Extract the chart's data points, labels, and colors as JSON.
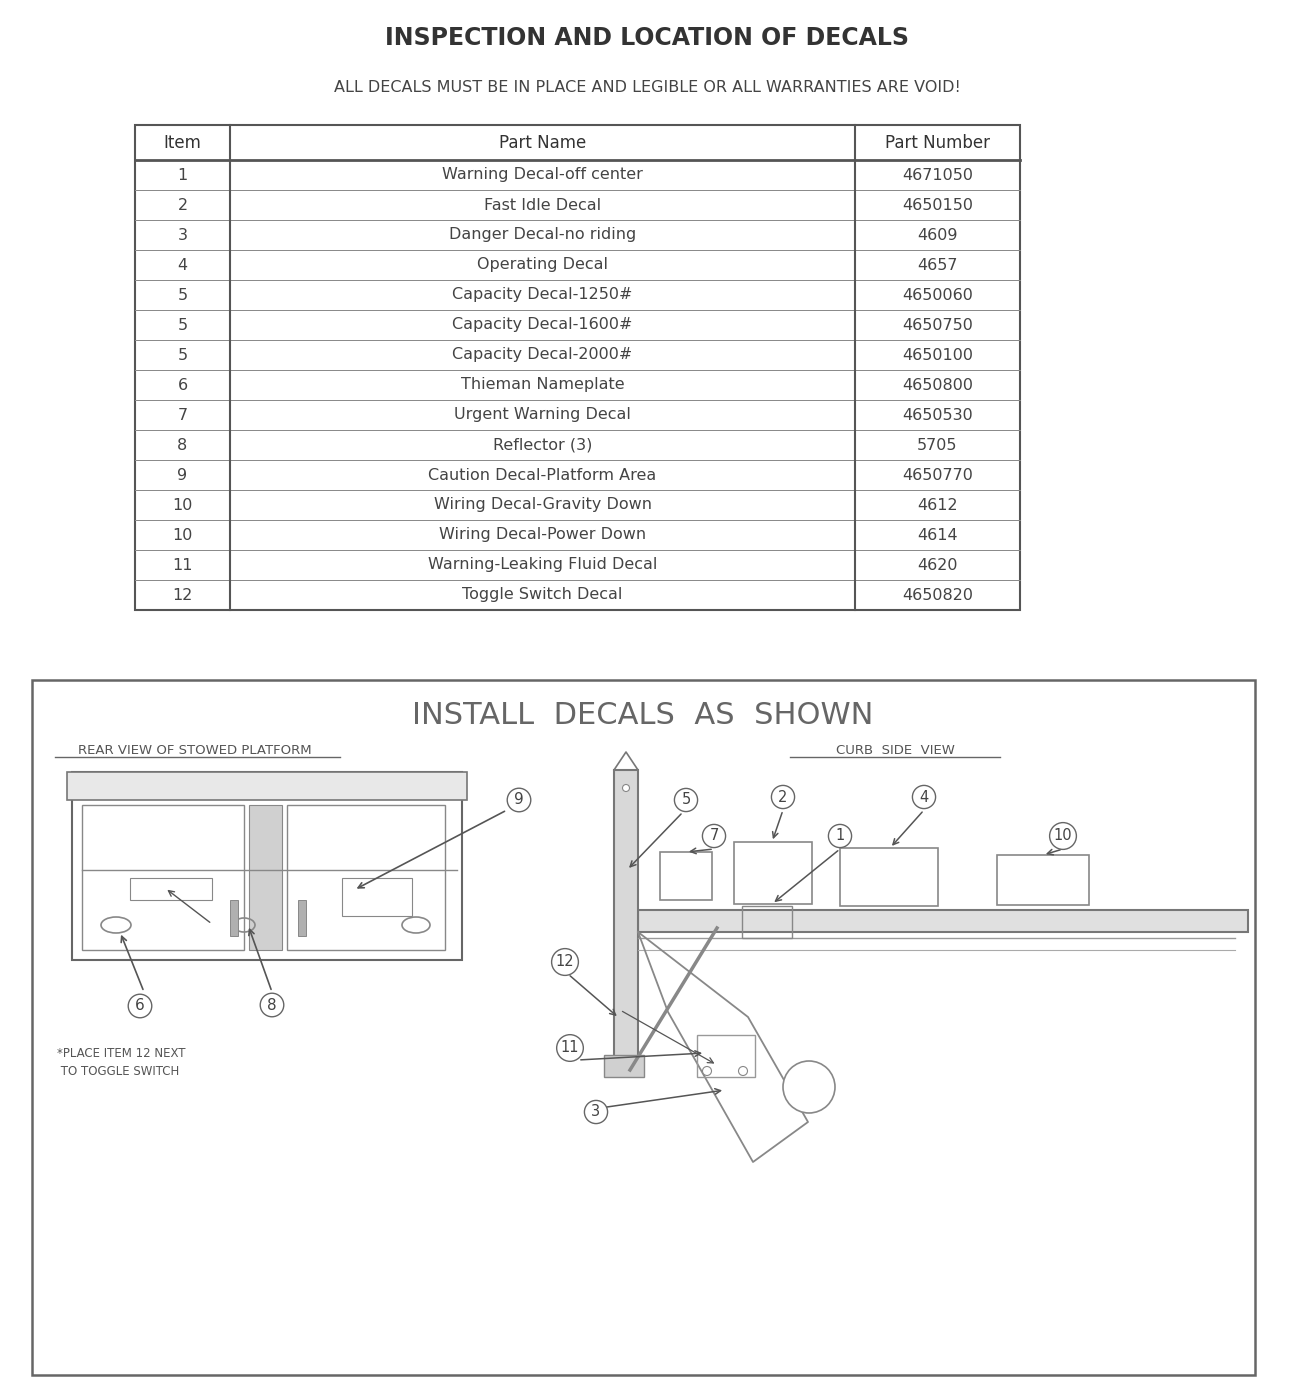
{
  "title": "INSPECTION AND LOCATION OF DECALS",
  "subtitle": "ALL DECALS MUST BE IN PLACE AND LEGIBLE OR ALL WARRANTIES ARE VOID!",
  "table_headers": [
    "Item",
    "Part Name",
    "Part Number"
  ],
  "table_rows": [
    [
      "1",
      "Warning Decal-off center",
      "4671050"
    ],
    [
      "2",
      "Fast Idle Decal",
      "4650150"
    ],
    [
      "3",
      "Danger Decal-no riding",
      "4609"
    ],
    [
      "4",
      "Operating Decal",
      "4657"
    ],
    [
      "5",
      "Capacity Decal-1250#",
      "4650060"
    ],
    [
      "5",
      "Capacity Decal-1600#",
      "4650750"
    ],
    [
      "5",
      "Capacity Decal-2000#",
      "4650100"
    ],
    [
      "6",
      "Thieman Nameplate",
      "4650800"
    ],
    [
      "7",
      "Urgent Warning Decal",
      "4650530"
    ],
    [
      "8",
      "Reflector (3)",
      "5705"
    ],
    [
      "9",
      "Caution Decal-Platform Area",
      "4650770"
    ],
    [
      "10",
      "Wiring Decal-Gravity Down",
      "4612"
    ],
    [
      "10",
      "Wiring Decal-Power Down",
      "4614"
    ],
    [
      "11",
      "Warning-Leaking Fluid Decal",
      "4620"
    ],
    [
      "12",
      "Toggle Switch Decal",
      "4650820"
    ]
  ],
  "diagram_title": "INSTALL  DECALS  AS  SHOWN",
  "left_label": "REAR VIEW OF STOWED PLATFORM",
  "right_label": "CURB  SIDE  VIEW",
  "note": "*PLACE ITEM 12 NEXT\n TO TOGGLE SWITCH",
  "bg_color": "#f5f5f5",
  "text_color": "#444444",
  "line_color": "#555555"
}
